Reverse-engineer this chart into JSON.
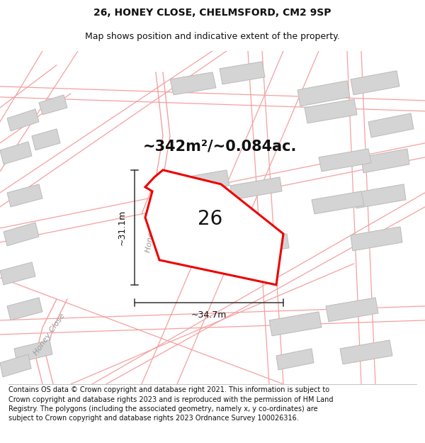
{
  "title_line1": "26, HONEY CLOSE, CHELMSFORD, CM2 9SP",
  "title_line2": "Map shows position and indicative extent of the property.",
  "footer_text": "Contains OS data © Crown copyright and database right 2021. This information is subject to Crown copyright and database rights 2023 and is reproduced with the permission of HM Land Registry. The polygons (including the associated geometry, namely x, y co-ordinates) are subject to Crown copyright and database rights 2023 Ordnance Survey 100026316.",
  "area_label": "~342m²/~0.084ac.",
  "width_label": "~34.7m",
  "height_label": "~31.1m",
  "plot_number": "26",
  "background_color": "#ffffff",
  "road_color": "#f5a0a0",
  "building_color": "#d4d4d4",
  "building_edge_color": "#bbbbbb",
  "highlight_color": "#ee0000",
  "dim_line_color": "#333333",
  "road_label_color": "#999999",
  "title_fontsize": 10,
  "subtitle_fontsize": 9,
  "footer_fontsize": 7,
  "area_fontsize": 15,
  "plot_number_fontsize": 20,
  "dim_fontsize": 9,
  "road_label_fontsize": 8
}
